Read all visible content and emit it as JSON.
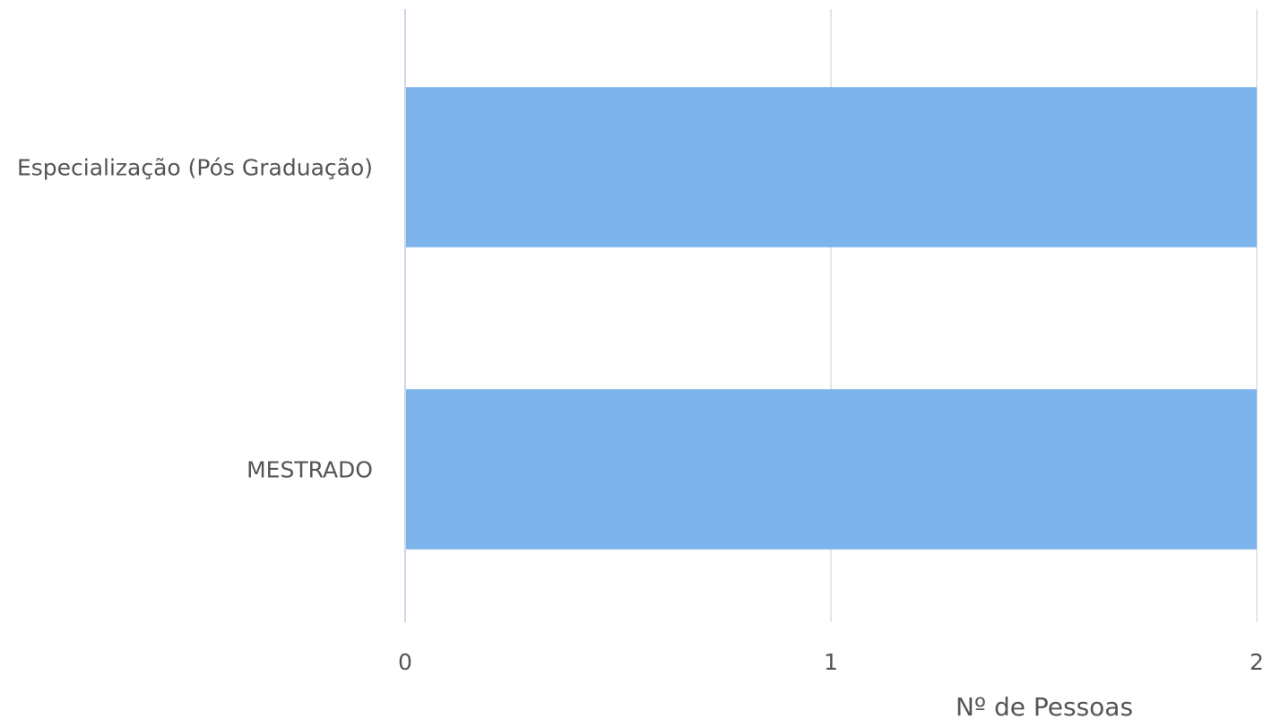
{
  "chart_data": {
    "type": "bar",
    "orientation": "horizontal",
    "categories": [
      "Especialização (Pós Graduação)",
      "MESTRADO"
    ],
    "values": [
      2,
      2
    ],
    "x_ticks": [
      "0",
      "1",
      "2"
    ],
    "xlim": [
      0,
      2
    ],
    "title": "",
    "xlabel": "Nº de Pessoas",
    "ylabel": "",
    "grid": true,
    "legend": "none",
    "bar_color": "#7cb4eb",
    "grid_color": "#e6e6e6",
    "axis_color": "#ccd6eb"
  }
}
